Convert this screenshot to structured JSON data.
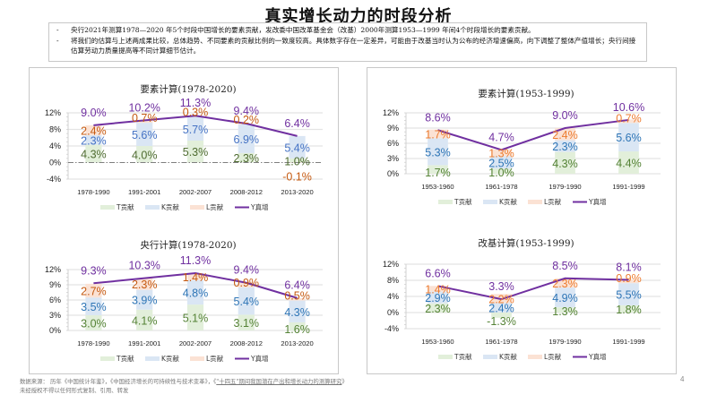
{
  "page": {
    "title": "真实增长动力的时段分析",
    "page_number": "4"
  },
  "notes": [
    {
      "bullet": "-",
      "text": "央行2021年测算1978—2020 年5个时段中国增长的要素贡献，发改委中国改革基金会（改基）2000年测算1953—1999 年间4个时段增长的要素贡献。"
    },
    {
      "bullet": "-",
      "text": "将我们的估算与上述两成果比较，总体趋势、不同要素的贡献比例的一致度较高。具体数字存在一定差异，可能由于改基当时认为公布的经济增速偏高，向下调整了整体产值增长；央行间接估算劳动力质量提高等不同计算细节估计。"
    }
  ],
  "footer": {
    "source_prefix": "数据来源：  历年《中国统计年鉴》，《中国经济增长的可持续性与技术变革》，《",
    "source_link": "\"十四五\"期间我国潜在产出和增长动力的测算研究",
    "source_suffix": "》",
    "disclaimer": "未经授权不得以任何形式复制、引用、转发"
  },
  "colors": {
    "T_fill": "#e2efda",
    "K_fill": "#dae6f4",
    "L_fill": "#fbe2d4",
    "Y_line": "#7030a0",
    "T_label": "#548235",
    "K_label_a": "#4472c4",
    "K_label_b": "#2e75b6",
    "L_label": "#ed7d31",
    "L_label_dark": "#c55a11",
    "grid": "#e4e4e4",
    "zero_line": "#7f7f7f"
  },
  "chart_data": [
    {
      "id": "factor-1978-2020",
      "type": "bar",
      "stacked": true,
      "title": "要素计算(1978-2020)",
      "categories": [
        "1978-1990",
        "1991-2001",
        "2002-2007",
        "2008-2012",
        "2013-2020"
      ],
      "ylim": [
        -4,
        12
      ],
      "yticks": [
        -4,
        0,
        4,
        8,
        12
      ],
      "ytick_labels": [
        "-4%",
        "0%",
        "4%",
        "8%",
        "12%"
      ],
      "grid": true,
      "zero_line": "dash-dot",
      "series": [
        {
          "name": "T贡献",
          "kind": "bar",
          "values": [
            4.3,
            4.0,
            5.3,
            2.3,
            1.0
          ],
          "labels": [
            "4.3%",
            "4.0%",
            "5.3%",
            "2.3%",
            "1.0%"
          ]
        },
        {
          "name": "K贡献",
          "kind": "bar",
          "values": [
            2.3,
            5.6,
            5.7,
            6.9,
            5.4
          ],
          "labels": [
            "2.3%",
            "5.6%",
            "5.7%",
            "6.9%",
            "5.4%"
          ]
        },
        {
          "name": "L贡献",
          "kind": "bar",
          "values": [
            2.4,
            0.7,
            0.3,
            0.2,
            -0.1
          ],
          "labels": [
            "2.4%",
            "0.7%",
            "0.3%",
            "0.2%",
            "-0.1%"
          ]
        },
        {
          "name": "Y真增",
          "kind": "line",
          "values": [
            9.0,
            10.2,
            11.3,
            9.4,
            6.4
          ],
          "labels": [
            "9.0%",
            "10.2%",
            "11.3%",
            "9.4%",
            "6.4%"
          ]
        }
      ],
      "legend": "bottom"
    },
    {
      "id": "pboc-1978-2020",
      "type": "bar",
      "stacked": true,
      "title": "央行计算(1978-2020)",
      "categories": [
        "1978-1990",
        "1991-2001",
        "2002-2007",
        "2008-2012",
        "2013-2020"
      ],
      "ylim": [
        0,
        12
      ],
      "yticks": [
        0,
        3,
        6,
        9,
        12
      ],
      "ytick_labels": [
        "0%",
        "3%",
        "6%",
        "9%",
        "12%"
      ],
      "grid": true,
      "series": [
        {
          "name": "T贡献",
          "kind": "bar",
          "values": [
            3.0,
            4.1,
            5.1,
            3.1,
            1.6
          ],
          "labels": [
            "3.0%",
            "4.1%",
            "5.1%",
            "3.1%",
            "1.6%"
          ]
        },
        {
          "name": "K贡献",
          "kind": "bar",
          "values": [
            3.5,
            3.9,
            4.8,
            5.4,
            4.3
          ],
          "labels": [
            "3.5%",
            "3.9%",
            "4.8%",
            "5.4%",
            "4.3%"
          ]
        },
        {
          "name": "L贡献",
          "kind": "bar",
          "values": [
            2.7,
            2.3,
            1.4,
            0.9,
            0.5
          ],
          "labels": [
            "2.7%",
            "2.3%",
            "1.4%",
            "0.9%",
            "0.5%"
          ]
        },
        {
          "name": "Y真增",
          "kind": "line",
          "values": [
            9.3,
            10.3,
            11.3,
            9.4,
            6.4
          ],
          "labels": [
            "9.3%",
            "10.3%",
            "11.3%",
            "9.4%",
            "6.4%"
          ]
        }
      ],
      "legend": "bottom"
    },
    {
      "id": "factor-1953-1999",
      "type": "bar",
      "stacked": true,
      "title": "要素计算(1953-1999)",
      "categories": [
        "1953-1960",
        "1961-1978",
        "1979-1990",
        "1991-1999"
      ],
      "ylim": [
        0,
        12
      ],
      "yticks": [
        0,
        3,
        6,
        9,
        12
      ],
      "ytick_labels": [
        "0%",
        "3%",
        "6%",
        "9%",
        "12%"
      ],
      "grid": true,
      "series": [
        {
          "name": "T贡献",
          "kind": "bar",
          "values": [
            1.7,
            1.0,
            4.3,
            4.4
          ],
          "labels": [
            "1.7%",
            "1.0%",
            "4.3%",
            "4.4%"
          ]
        },
        {
          "name": "K贡献",
          "kind": "bar",
          "values": [
            5.3,
            2.5,
            2.3,
            5.6
          ],
          "labels": [
            "5.3%",
            "2.5%",
            "2.3%",
            "5.6%"
          ]
        },
        {
          "name": "L贡献",
          "kind": "bar",
          "values": [
            1.7,
            1.3,
            2.4,
            0.7
          ],
          "labels": [
            "1.7%",
            "1.3%",
            "2.4%",
            "0.7%"
          ]
        },
        {
          "name": "Y真增",
          "kind": "line",
          "values": [
            8.6,
            4.7,
            9.0,
            10.6
          ],
          "labels": [
            "8.6%",
            "4.7%",
            "9.0%",
            "10.6%"
          ]
        }
      ],
      "legend": "bottom"
    },
    {
      "id": "reform-1953-1999",
      "type": "bar",
      "stacked": true,
      "title": "改基计算(1953-1999)",
      "categories": [
        "1953-1960",
        "1961-1978",
        "1979-1990",
        "1991-1999"
      ],
      "ylim": [
        -4,
        12
      ],
      "yticks": [
        -4,
        0,
        4,
        8,
        12
      ],
      "ytick_labels": [
        "-4%",
        "0%",
        "4%",
        "8%",
        "12%"
      ],
      "grid": true,
      "series": [
        {
          "name": "T贡献",
          "kind": "bar",
          "values": [
            2.3,
            -1.3,
            1.3,
            1.8
          ],
          "labels": [
            "2.3%",
            "-1.3%",
            "1.3%",
            "1.8%"
          ]
        },
        {
          "name": "K贡献",
          "kind": "bar",
          "values": [
            2.9,
            2.4,
            4.9,
            5.5
          ],
          "labels": [
            "2.9%",
            "2.4%",
            "4.9%",
            "5.5%"
          ]
        },
        {
          "name": "L贡献",
          "kind": "bar",
          "values": [
            1.4,
            2.2,
            2.3,
            0.9
          ],
          "labels": [
            "1.4%",
            "2.2%",
            "2.3%",
            "0.9%"
          ]
        },
        {
          "name": "Y真增",
          "kind": "line",
          "values": [
            6.6,
            3.3,
            8.5,
            8.1
          ],
          "labels": [
            "6.6%",
            "3.3%",
            "8.5%",
            "8.1%"
          ]
        }
      ],
      "legend": "bottom"
    }
  ]
}
